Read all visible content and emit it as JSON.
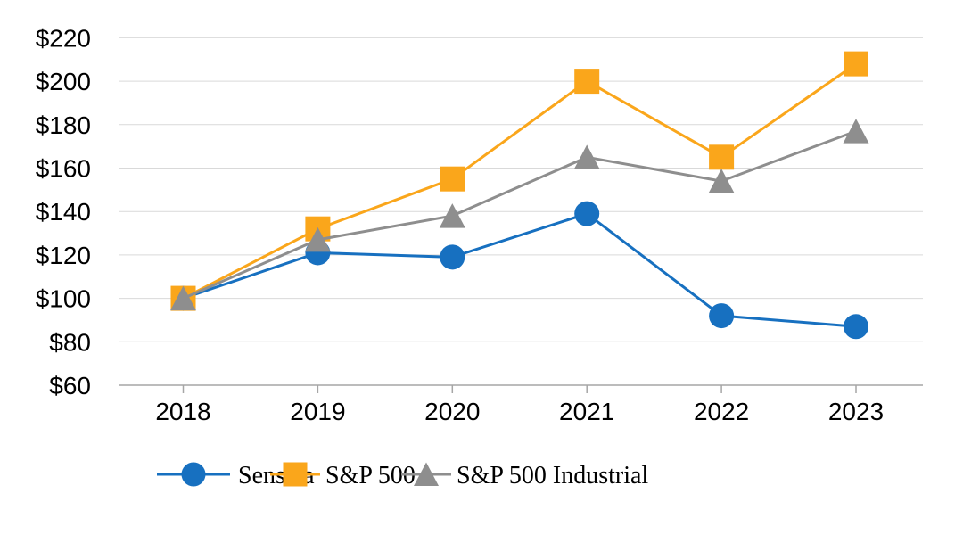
{
  "chart_data": {
    "type": "line",
    "title": "",
    "xlabel": "",
    "ylabel": "",
    "categories": [
      "2018",
      "2019",
      "2020",
      "2021",
      "2022",
      "2023"
    ],
    "series": [
      {
        "name": "Sensata",
        "marker": "circle",
        "color": "#1770C0",
        "values": [
          100,
          121,
          119,
          139,
          92,
          87
        ]
      },
      {
        "name": "S&P 500",
        "marker": "square",
        "color": "#FAA61B",
        "values": [
          100,
          132,
          155,
          200,
          165,
          208
        ]
      },
      {
        "name": "S&P 500 Industrial",
        "marker": "triangle",
        "color": "#8E8E8E",
        "values": [
          100,
          127,
          138,
          165,
          154,
          177
        ]
      }
    ],
    "y_ticks": [
      {
        "value": 220,
        "label": "$220"
      },
      {
        "value": 200,
        "label": "$200"
      },
      {
        "value": 180,
        "label": "$180"
      },
      {
        "value": 160,
        "label": "$160"
      },
      {
        "value": 140,
        "label": "$140"
      },
      {
        "value": 120,
        "label": "$120"
      },
      {
        "value": 100,
        "label": "$100"
      },
      {
        "value": 80,
        "label": "$80"
      },
      {
        "value": 60,
        "label": "$60"
      }
    ],
    "ylim": [
      60,
      220
    ],
    "grid": "horizontal",
    "legend_position": "bottom",
    "colors": {
      "background": "#FFFFFF",
      "gridline": "#D9D9D9",
      "axis_line": "#A6A6A6",
      "tick_mark": "#A6A6A6",
      "text": "#000000"
    }
  }
}
